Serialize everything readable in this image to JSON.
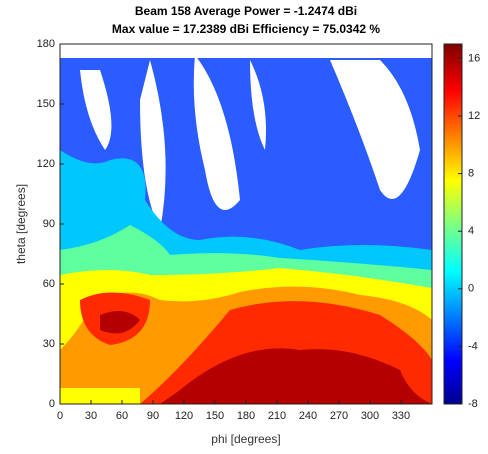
{
  "chart_data": {
    "type": "contour",
    "title": [
      "Beam 158 Average Power = -1.2474 dBi",
      "Max value = 17.2389 dBi Efficiency = 75.0342 %"
    ],
    "xlabel": "phi [degrees]",
    "ylabel": "theta [degrees]",
    "xlim": [
      0,
      360
    ],
    "xticks": [
      0,
      30,
      60,
      90,
      120,
      150,
      180,
      210,
      240,
      270,
      300,
      330
    ],
    "ylim": [
      0,
      180
    ],
    "yticks": [
      0,
      30,
      60,
      90,
      120,
      150,
      180
    ],
    "colorbar": {
      "lim": [
        -8,
        17
      ],
      "ticks": [
        16,
        12,
        8,
        4,
        0,
        -4,
        -8
      ]
    }
  }
}
